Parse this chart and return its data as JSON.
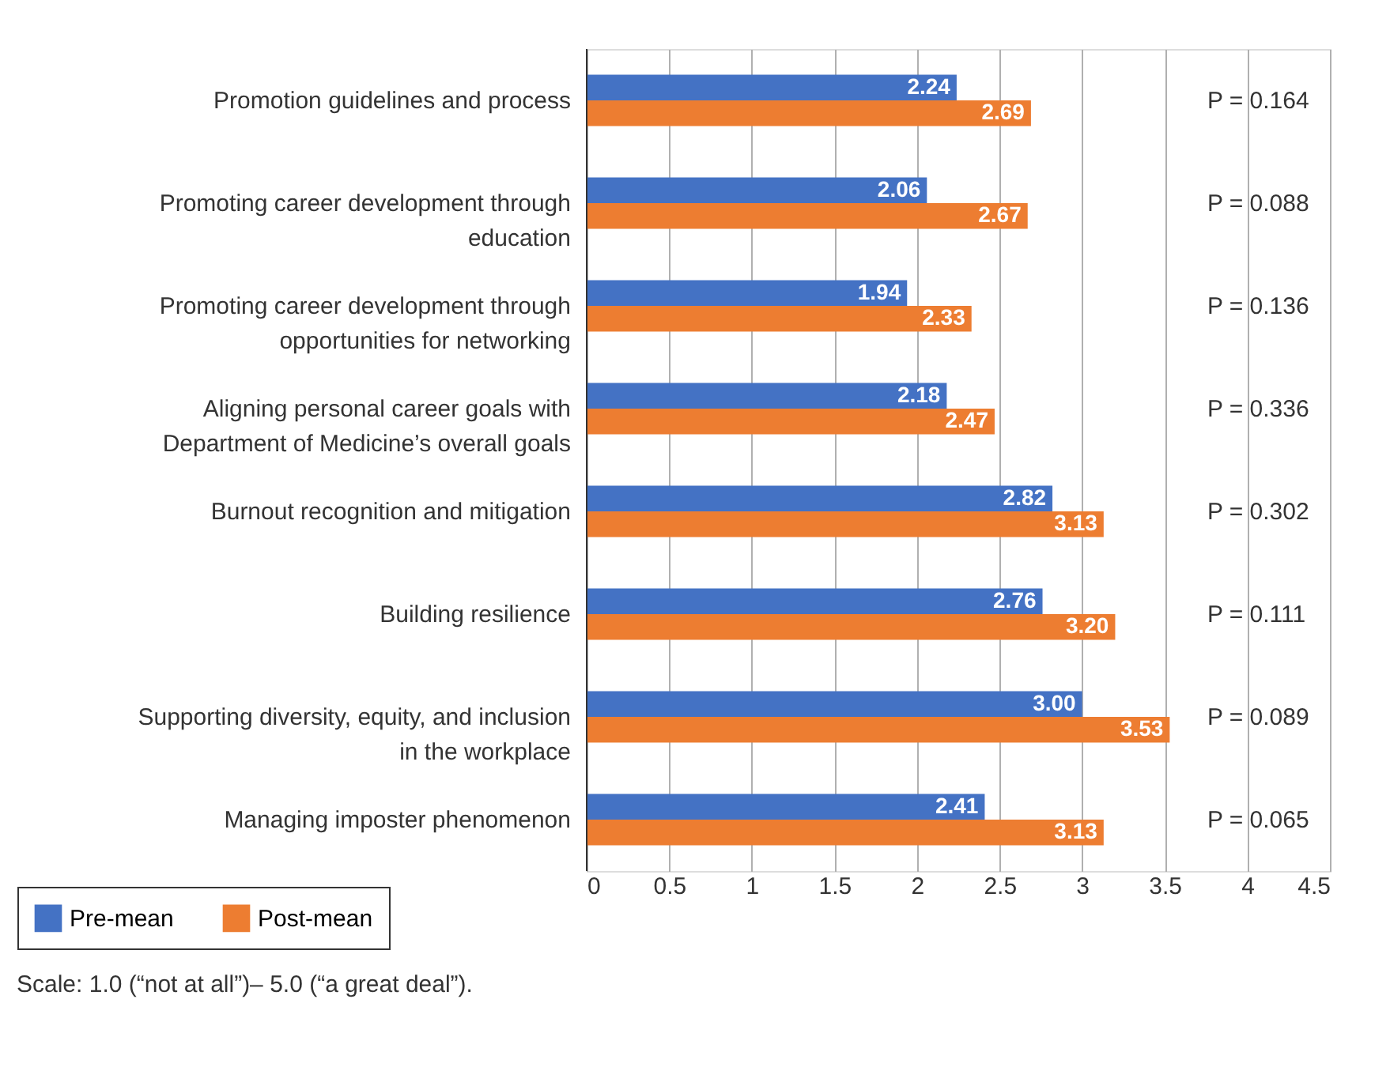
{
  "chart_data": {
    "type": "bar",
    "orientation": "horizontal",
    "categories": [
      "Promotion guidelines and process",
      "Promoting career development through education",
      "Promoting career development through opportunities for networking",
      "Aligning personal career goals with Department of Medicine’s overall goals",
      "Burnout recognition and mitigation",
      "Building resilience",
      "Supporting diversity, equity, and inclusion in the workplace",
      "Managing imposter phenomenon"
    ],
    "series": [
      {
        "name": "Pre-mean",
        "color": "#4472c4",
        "values": [
          2.24,
          2.06,
          1.94,
          2.18,
          2.82,
          2.76,
          3.0,
          2.41
        ],
        "value_labels": [
          "2.24",
          "2.06",
          "1.94",
          "2.18",
          "2.82",
          "2.76",
          "3.00",
          "2.41"
        ]
      },
      {
        "name": "Post-mean",
        "color": "#ed7d31",
        "values": [
          2.69,
          2.67,
          2.33,
          2.47,
          3.13,
          3.2,
          3.53,
          3.13
        ],
        "value_labels": [
          "2.69",
          "2.67",
          "2.33",
          "2.47",
          "3.13",
          "3.20",
          "3.53",
          "3.13"
        ]
      }
    ],
    "xlim": [
      0,
      4.5
    ],
    "xticks": [
      0,
      0.5,
      1,
      1.5,
      2,
      2.5,
      3,
      3.5,
      4,
      4.5
    ],
    "grid": "x",
    "legend": "bottom left",
    "annotations": [
      "P = 0.164",
      "P = 0.088",
      "P = 0.136",
      "P = 0.336",
      "P = 0.302",
      "P = 0.111",
      "P = 0.089",
      "P = 0.065",
      "Scale: 1.0 (“not at all”)– 5.0 (“a great deal”)."
    ]
  }
}
